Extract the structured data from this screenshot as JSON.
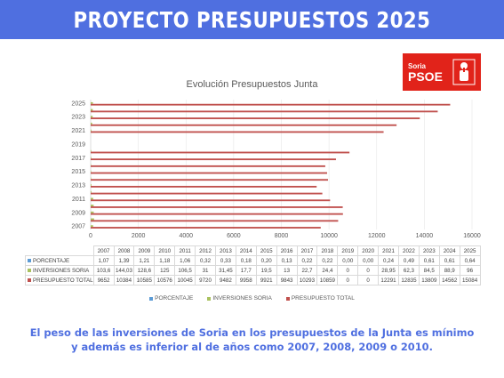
{
  "banner": {
    "title": "PROYECTO PRESUPUESTOS 2025"
  },
  "logo": {
    "sub": "Soria",
    "main": "PSOE"
  },
  "colors": {
    "banner": "#4f6fe0",
    "porcentaje": "#5b9bd5",
    "inversiones": "#a9c15e",
    "presupuesto": "#c0504d",
    "logo": "#e1231a"
  },
  "chart_data": {
    "type": "bar",
    "orientation": "horizontal",
    "title": "Evolución Presupuestos Junta",
    "categories": [
      "2007",
      "2008",
      "2009",
      "2010",
      "2011",
      "2012",
      "2013",
      "2014",
      "2015",
      "2016",
      "2017",
      "2018",
      "2019",
      "2020",
      "2021",
      "2022",
      "2023",
      "2024",
      "2025"
    ],
    "xlim": [
      0,
      16000
    ],
    "xticks": [
      "0",
      "2000",
      "4000",
      "6000",
      "8000",
      "10000",
      "12000",
      "14000",
      "16000"
    ],
    "yticks": [
      "2007",
      "2009",
      "2011",
      "2013",
      "2015",
      "2017",
      "2019",
      "2021",
      "2023",
      "2025"
    ],
    "legend_position": "bottom",
    "series": [
      {
        "name": "PORCENTAJE",
        "values": [
          1.07,
          1.39,
          1.21,
          1.18,
          1.06,
          0.32,
          0.33,
          0.18,
          0.2,
          0.13,
          0.22,
          0.22,
          0,
          0,
          0.24,
          0.49,
          0.61,
          0.61,
          0.64
        ],
        "labels": [
          "1,07",
          "1,39",
          "1,21",
          "1,18",
          "1,06",
          "0,32",
          "0,33",
          "0,18",
          "0,20",
          "0,13",
          "0,22",
          "0,22",
          "0,00",
          "0,00",
          "0,24",
          "0,49",
          "0,61",
          "0,61",
          "0,64"
        ]
      },
      {
        "name": "INVERSIONES SORIA",
        "values": [
          103.6,
          144.03,
          128.6,
          125,
          106.5,
          31,
          31.45,
          17.7,
          19.5,
          13,
          22.7,
          24.4,
          0,
          0,
          28.95,
          62.3,
          84.5,
          88.9,
          96
        ],
        "labels": [
          "103,6",
          "144,03",
          "128,6",
          "125",
          "106,5",
          "31",
          "31,45",
          "17,7",
          "19,5",
          "13",
          "22,7",
          "24,4",
          "0",
          "0",
          "28,95",
          "62,3",
          "84,5",
          "88,9",
          "96"
        ]
      },
      {
        "name": "PRESUPUESTO TOTAL",
        "values": [
          9652,
          10384,
          10585,
          10576,
          10045,
          9720,
          9482,
          9958,
          9921,
          9843,
          10293,
          10859,
          0,
          0,
          12291,
          12835,
          13809,
          14562,
          15084
        ],
        "labels": [
          "9652",
          "10384",
          "10585",
          "10576",
          "10045",
          "9720",
          "9482",
          "9958",
          "9921",
          "9843",
          "10293",
          "10859",
          "0",
          "0",
          "12291",
          "12835",
          "13809",
          "14562",
          "15084"
        ]
      }
    ]
  },
  "caption": "El peso de las inversiones de Soria en los presupuestos de la Junta es mínimo y además es inferior al de años como 2007, 2008, 2009 o 2010."
}
